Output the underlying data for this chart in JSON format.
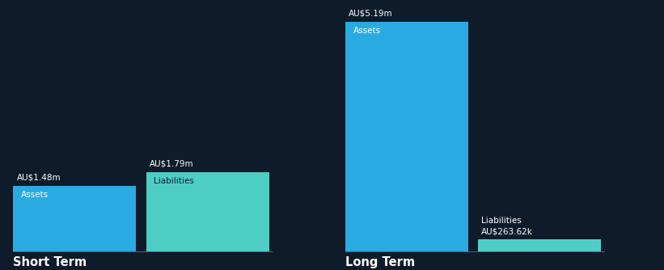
{
  "background_color": "#0d1b2a",
  "bar_color_assets": "#29abe2",
  "bar_color_liabilities": "#4ecdc4",
  "text_color": "#ffffff",
  "label_color_liab_short": "#0d2030",
  "short_term_assets_value": 1.48,
  "short_term_assets_label": "AU$1.48m",
  "short_term_liabilities_value": 1.79,
  "short_term_liabilities_label": "AU$1.79m",
  "long_term_assets_value": 5.19,
  "long_term_assets_label": "AU$5.19m",
  "long_term_liabilities_value": 0.26362,
  "long_term_liabilities_label": "AU$263.62k",
  "short_term_label": "Short Term",
  "long_term_label": "Long Term",
  "assets_text": "Assets",
  "liabilities_text": "Liabilities",
  "font_size_value": 7.5,
  "font_size_bar_label": 7.5,
  "font_size_axis_label": 10.5
}
